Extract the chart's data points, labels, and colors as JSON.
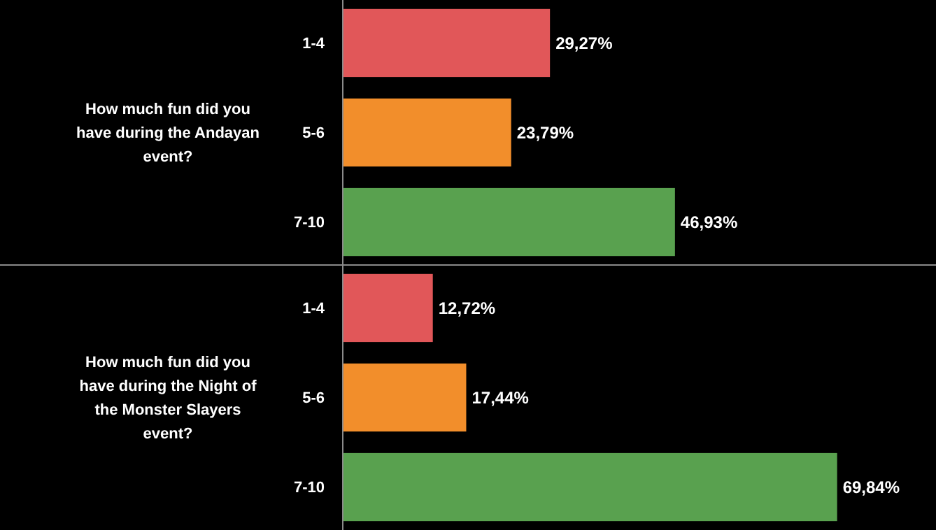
{
  "chart_data": [
    {
      "type": "bar",
      "orientation": "horizontal",
      "title": "How much fun did you have during the Andayan event?",
      "categories": [
        "1-4",
        "5-6",
        "7-10"
      ],
      "values": [
        29.27,
        23.79,
        46.93
      ],
      "value_labels": [
        "29,27%",
        "23,79%",
        "46,93%"
      ],
      "colors": [
        "#e15759",
        "#f28e2b",
        "#59a14f"
      ]
    },
    {
      "type": "bar",
      "orientation": "horizontal",
      "title": "How much fun did you have during the Night of the Monster Slayers event?",
      "categories": [
        "1-4",
        "5-6",
        "7-10"
      ],
      "values": [
        12.72,
        17.44,
        69.84
      ],
      "value_labels": [
        "12,72%",
        "17,44%",
        "69,84%"
      ],
      "colors": [
        "#e15759",
        "#f28e2b",
        "#59a14f"
      ]
    }
  ]
}
